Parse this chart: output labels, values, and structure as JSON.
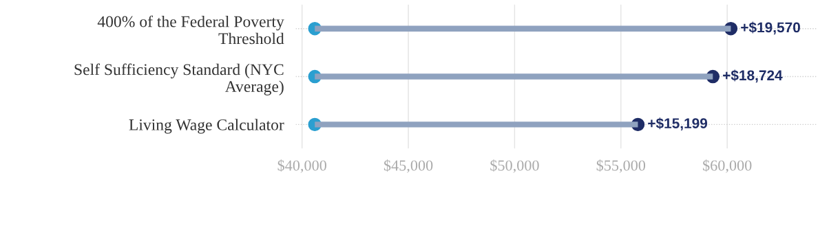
{
  "chart_data": {
    "type": "bar",
    "orientation": "horizontal",
    "categories": [
      "400% of the Federal Poverty\nThreshold",
      "Self Sufficiency Standard (NYC\nAverage)",
      "Living Wage Calculator"
    ],
    "series": [
      {
        "color": "#8fa2bf",
        "base": [
          40600,
          40600,
          40600
        ],
        "values": [
          19570,
          18724,
          15199
        ],
        "value_labels": [
          "+$19,570",
          "+$18,724",
          "+$15,199"
        ]
      },
      {
        "type": "scatter",
        "color": "#2b9fd0",
        "values": [
          40600,
          40600,
          40600
        ]
      },
      {
        "type": "scatter",
        "color": "#1f2d66",
        "values": [
          60170,
          59324,
          55799
        ]
      }
    ],
    "marker": "circle",
    "xlim": [
      39700,
      64200
    ],
    "xticks": [
      {
        "value": 40000,
        "label": "$40,000"
      },
      {
        "value": 45000,
        "label": "$45,000"
      },
      {
        "value": 50000,
        "label": "$50,000"
      },
      {
        "value": 55000,
        "label": "$55,000"
      },
      {
        "value": 60000,
        "label": "$60,000"
      }
    ],
    "grid": true
  }
}
